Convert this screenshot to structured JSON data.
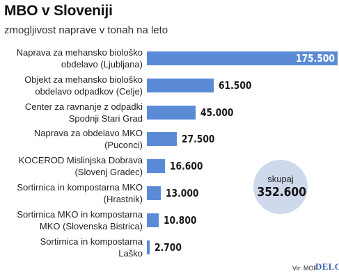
{
  "title": "MBO v Sloveniji",
  "subtitle": "zmogljivost naprave v tonah na leto",
  "total": {
    "label": "skupaj",
    "value": "352.600"
  },
  "source": "Vir: MOP",
  "brand": "DELO",
  "colors": {
    "bar": "#5b8bd6",
    "total_circle": "#cfd9ec",
    "brand": "#3d68b8"
  },
  "chart_data": {
    "type": "bar",
    "orientation": "horizontal",
    "categories": [
      [
        "Naprava za mehansko biološko",
        "obdelavo (Ljubljana)"
      ],
      [
        "Objekt za mehansko biološko",
        "obdelavo odpadkov (Celje)"
      ],
      [
        "Center za ravnanje z odpadki",
        "Spodnji Stari Grad"
      ],
      [
        "Naprava za obdelavo MKO",
        "(Puconci)"
      ],
      [
        "KOCEROD Mislinjska Dobrava",
        "(Slovenj Gradec)"
      ],
      [
        "Sortirnica in kompostarna MKO",
        "(Hrastnik)"
      ],
      [
        "Sortirnica MKO in kompostarna",
        "MKO (Slovenska Bistrica)"
      ],
      [
        "Sortirnica in kompostarna",
        "Laško"
      ]
    ],
    "values": [
      175500,
      61500,
      45000,
      27500,
      16600,
      13000,
      10800,
      2700
    ],
    "value_labels": [
      "175.500",
      "61.500",
      "45.000",
      "27.500",
      "16.600",
      "13.000",
      "10.800",
      "2.700"
    ],
    "title": "MBO v Sloveniji",
    "subtitle": "zmogljivost naprave v tonah na leto",
    "xlim": [
      0,
      175500
    ],
    "grid": false,
    "legend": "none"
  }
}
